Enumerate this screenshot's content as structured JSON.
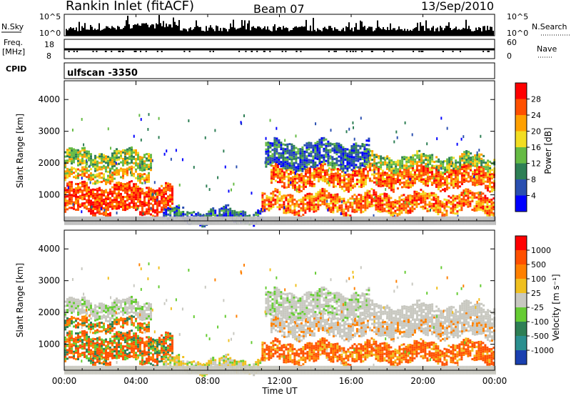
{
  "header": {
    "station": "Rankin Inlet (fitACF)",
    "beam": "Beam 07",
    "date": "13/Sep/2010"
  },
  "top_panels": {
    "nsky_label": "N.Sky",
    "nsky_ticks": [
      "10^5",
      "10^0"
    ],
    "nsearch_label": "N.Search",
    "nsearch_ticks": [
      "10^5",
      "10^0"
    ],
    "freq_label": "Freq.",
    "freq_unit": "[MHz]",
    "freq_ticks": [
      "18",
      "8"
    ],
    "nave_label": "Nave",
    "nave_ticks": [
      "60",
      "0"
    ],
    "cpid_label": "CPID",
    "cpid_value": "ulfscan -3350"
  },
  "chart_data": [
    {
      "type": "heatmap",
      "name": "power",
      "ylabel": "Slant Range [km]",
      "yticks": [
        "4000",
        "3000",
        "2000",
        "1000"
      ],
      "ytick_values": [
        4000,
        3000,
        2000,
        1000
      ],
      "ylim": [
        180,
        4590
      ],
      "xlim_hours": [
        0,
        24
      ],
      "colorbar": {
        "label": "Power [dB]",
        "ticks": [
          "28",
          "24",
          "20",
          "16",
          "12",
          "8",
          "4"
        ],
        "range": [
          0,
          32
        ],
        "colors": [
          "#0000ff",
          "#2a4fb0",
          "#2e7f55",
          "#66bb44",
          "#f2dd22",
          "#ffa000",
          "#ff5000",
          "#ff0000"
        ]
      }
    },
    {
      "type": "heatmap",
      "name": "velocity",
      "ylabel": "Slant Range [km]",
      "yticks": [
        "4000",
        "3000",
        "2000",
        "1000"
      ],
      "ytick_values": [
        4000,
        3000,
        2000,
        1000
      ],
      "ylim": [
        180,
        4590
      ],
      "xlim_hours": [
        0,
        24
      ],
      "colorbar": {
        "label": "Velocity [m s⁻¹]",
        "ticks": [
          "1000",
          "500",
          "100",
          "25",
          "-25",
          "-100",
          "-500",
          "-1000"
        ],
        "colors": [
          "#1a40b0",
          "#2b8f8f",
          "#2e7f55",
          "#66cc33",
          "#c8c8c0",
          "#f0c020",
          "#ff8000",
          "#ff5000",
          "#ff0000"
        ]
      }
    }
  ],
  "xaxis": {
    "label": "Time UT",
    "ticks": [
      "00:00",
      "04:00",
      "08:00",
      "12:00",
      "16:00",
      "20:00",
      "00:00"
    ],
    "tick_hours": [
      0,
      4,
      8,
      12,
      16,
      20,
      24
    ]
  }
}
